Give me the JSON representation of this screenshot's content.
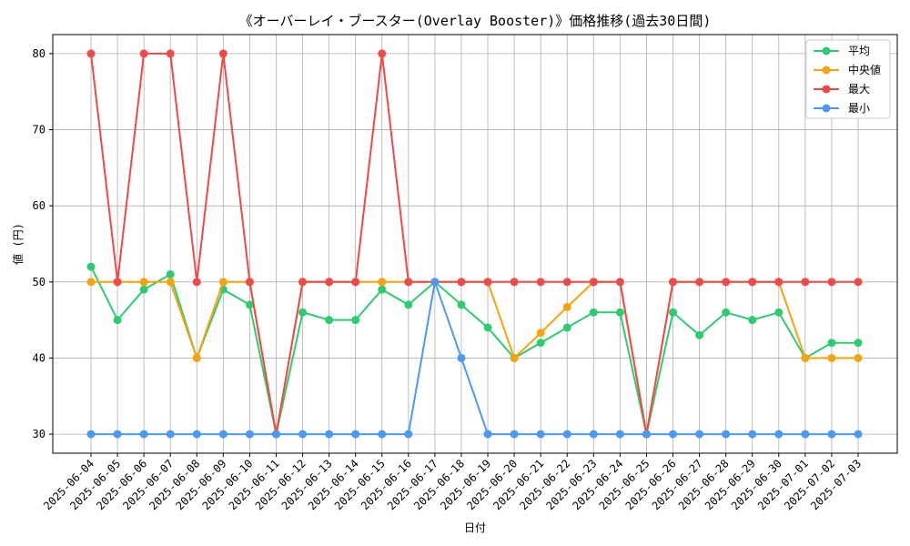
{
  "chart_data": {
    "type": "line",
    "title": "《オーバーレイ・ブースター(Overlay Booster)》価格推移(過去30日間)",
    "xlabel": "日付",
    "ylabel": "値 (円)",
    "ylim": [
      27.5,
      82.5
    ],
    "yticks": [
      30,
      40,
      50,
      60,
      70,
      80
    ],
    "grid": true,
    "legend_position": "top-right",
    "categories": [
      "2025-06-04",
      "2025-06-05",
      "2025-06-06",
      "2025-06-07",
      "2025-06-08",
      "2025-06-09",
      "2025-06-10",
      "2025-06-11",
      "2025-06-12",
      "2025-06-13",
      "2025-06-14",
      "2025-06-15",
      "2025-06-16",
      "2025-06-17",
      "2025-06-18",
      "2025-06-19",
      "2025-06-20",
      "2025-06-21",
      "2025-06-22",
      "2025-06-23",
      "2025-06-24",
      "2025-06-25",
      "2025-06-26",
      "2025-06-27",
      "2025-06-28",
      "2025-06-29",
      "2025-06-30",
      "2025-07-01",
      "2025-07-02",
      "2025-07-03"
    ],
    "series": [
      {
        "name": "平均",
        "color": "#2ecc71",
        "values": [
          52,
          45,
          49,
          51,
          40,
          49,
          47,
          30,
          46,
          45,
          45,
          49,
          47,
          50,
          47,
          44,
          40,
          42,
          44,
          46,
          46,
          30,
          46,
          43,
          46,
          45,
          46,
          40,
          42,
          42
        ]
      },
      {
        "name": "中央値",
        "color": "#f5a40c",
        "values": [
          50,
          50,
          50,
          50,
          40,
          50,
          50,
          30,
          50,
          50,
          50,
          50,
          50,
          50,
          50,
          50,
          40,
          43.3,
          46.7,
          50,
          50,
          30,
          50,
          50,
          50,
          50,
          50,
          40,
          40,
          40
        ]
      },
      {
        "name": "最大",
        "color": "#ef4a4a",
        "values": [
          80,
          50,
          80,
          80,
          50,
          80,
          50,
          30,
          50,
          50,
          50,
          80,
          50,
          50,
          50,
          50,
          50,
          50,
          50,
          50,
          50,
          30,
          50,
          50,
          50,
          50,
          50,
          50,
          50,
          50
        ]
      },
      {
        "name": "最小",
        "color": "#4a9af5",
        "values": [
          30,
          30,
          30,
          30,
          30,
          30,
          30,
          30,
          30,
          30,
          30,
          30,
          30,
          50,
          40,
          30,
          30,
          30,
          30,
          30,
          30,
          30,
          30,
          30,
          30,
          30,
          30,
          30,
          30,
          30
        ]
      }
    ]
  }
}
